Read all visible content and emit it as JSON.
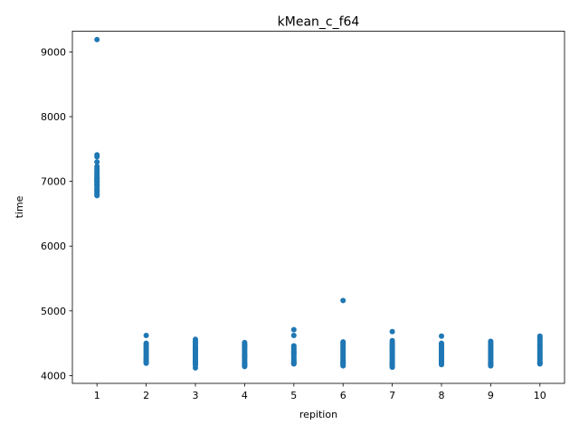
{
  "chart_data": {
    "type": "scatter",
    "title": "kMean_c_f64",
    "xlabel": "repition",
    "ylabel": "time",
    "x_ticks": [
      1,
      2,
      3,
      4,
      5,
      6,
      7,
      8,
      9,
      10
    ],
    "y_ticks": [
      4000,
      5000,
      6000,
      7000,
      8000,
      9000
    ],
    "xlim": [
      0.5,
      10.5
    ],
    "ylim": [
      3880,
      9320
    ],
    "grid": false,
    "marker_color": "#1f77b4",
    "series": [
      {
        "x": [
          1,
          1,
          1,
          1,
          1,
          1,
          1,
          1,
          1,
          1,
          1,
          1,
          1,
          1,
          1,
          1,
          1,
          1,
          1,
          1,
          1,
          1,
          1,
          1,
          1,
          1,
          1,
          1,
          1,
          1,
          2,
          2,
          2,
          2,
          2,
          2,
          2,
          2,
          2,
          2,
          2,
          2,
          2,
          2,
          2,
          2,
          2,
          2,
          2,
          2,
          3,
          3,
          3,
          3,
          3,
          3,
          3,
          3,
          3,
          3,
          3,
          3,
          3,
          3,
          3,
          3,
          3,
          3,
          3,
          3,
          3,
          3,
          3,
          3,
          3,
          4,
          4,
          4,
          4,
          4,
          4,
          4,
          4,
          4,
          4,
          4,
          4,
          4,
          4,
          4,
          4,
          4,
          4,
          4,
          4,
          4,
          4,
          4,
          4,
          5,
          5,
          5,
          5,
          5,
          5,
          5,
          5,
          5,
          5,
          5,
          5,
          5,
          5,
          5,
          5,
          5,
          5,
          5,
          5,
          6,
          6,
          6,
          6,
          6,
          6,
          6,
          6,
          6,
          6,
          6,
          6,
          6,
          6,
          6,
          6,
          6,
          6,
          6,
          6,
          6,
          6,
          6,
          7,
          7,
          7,
          7,
          7,
          7,
          7,
          7,
          7,
          7,
          7,
          7,
          7,
          7,
          7,
          7,
          7,
          7,
          7,
          7,
          7,
          7,
          7,
          7,
          7,
          7,
          8,
          8,
          8,
          8,
          8,
          8,
          8,
          8,
          8,
          8,
          8,
          8,
          8,
          8,
          8,
          8,
          8,
          8,
          8,
          8,
          8,
          8,
          9,
          9,
          9,
          9,
          9,
          9,
          9,
          9,
          9,
          9,
          9,
          9,
          9,
          9,
          9,
          9,
          9,
          9,
          9,
          9,
          9,
          9,
          9,
          10,
          10,
          10,
          10,
          10,
          10,
          10,
          10,
          10,
          10,
          10,
          10,
          10,
          10,
          10,
          10,
          10,
          10,
          10,
          10,
          10,
          10,
          10,
          10
        ],
        "y": [
          9190,
          7410,
          7380,
          7300,
          7230,
          7200,
          7170,
          7150,
          7120,
          7100,
          7080,
          7060,
          7050,
          7030,
          7010,
          7000,
          6990,
          6970,
          6950,
          6930,
          6900,
          6880,
          6860,
          6850,
          6830,
          6810,
          6790,
          6780,
          6950,
          7040,
          4620,
          4500,
          4480,
          4460,
          4440,
          4420,
          4400,
          4380,
          4360,
          4340,
          4320,
          4300,
          4280,
          4260,
          4250,
          4240,
          4230,
          4210,
          4200,
          4190,
          4560,
          4530,
          4500,
          4470,
          4450,
          4430,
          4410,
          4390,
          4370,
          4350,
          4330,
          4310,
          4290,
          4270,
          4250,
          4230,
          4220,
          4210,
          4200,
          4190,
          4180,
          4160,
          4120,
          4520,
          4400,
          4510,
          4490,
          4470,
          4450,
          4430,
          4410,
          4390,
          4370,
          4350,
          4330,
          4310,
          4290,
          4270,
          4250,
          4230,
          4210,
          4190,
          4180,
          4170,
          4160,
          4150,
          4140,
          4460,
          4300,
          4710,
          4620,
          4460,
          4440,
          4420,
          4400,
          4380,
          4360,
          4340,
          4320,
          4300,
          4280,
          4260,
          4240,
          4220,
          4210,
          4200,
          4190,
          4180,
          4350,
          5160,
          4520,
          4500,
          4480,
          4460,
          4440,
          4420,
          4400,
          4380,
          4360,
          4340,
          4320,
          4300,
          4280,
          4260,
          4240,
          4220,
          4210,
          4200,
          4190,
          4180,
          4160,
          4150,
          4680,
          4540,
          4510,
          4490,
          4470,
          4450,
          4430,
          4410,
          4390,
          4370,
          4350,
          4330,
          4310,
          4290,
          4270,
          4250,
          4230,
          4210,
          4190,
          4180,
          4170,
          4160,
          4150,
          4140,
          4130,
          4400,
          4610,
          4500,
          4480,
          4460,
          4440,
          4420,
          4400,
          4380,
          4360,
          4340,
          4320,
          4300,
          4280,
          4260,
          4240,
          4230,
          4220,
          4210,
          4200,
          4190,
          4180,
          4170,
          4530,
          4510,
          4490,
          4470,
          4450,
          4430,
          4410,
          4390,
          4370,
          4350,
          4330,
          4310,
          4290,
          4270,
          4250,
          4230,
          4210,
          4200,
          4190,
          4180,
          4170,
          4160,
          4150,
          4610,
          4590,
          4570,
          4550,
          4530,
          4510,
          4490,
          4470,
          4450,
          4430,
          4410,
          4390,
          4370,
          4350,
          4330,
          4310,
          4290,
          4270,
          4250,
          4230,
          4210,
          4200,
          4190,
          4180
        ]
      }
    ]
  }
}
